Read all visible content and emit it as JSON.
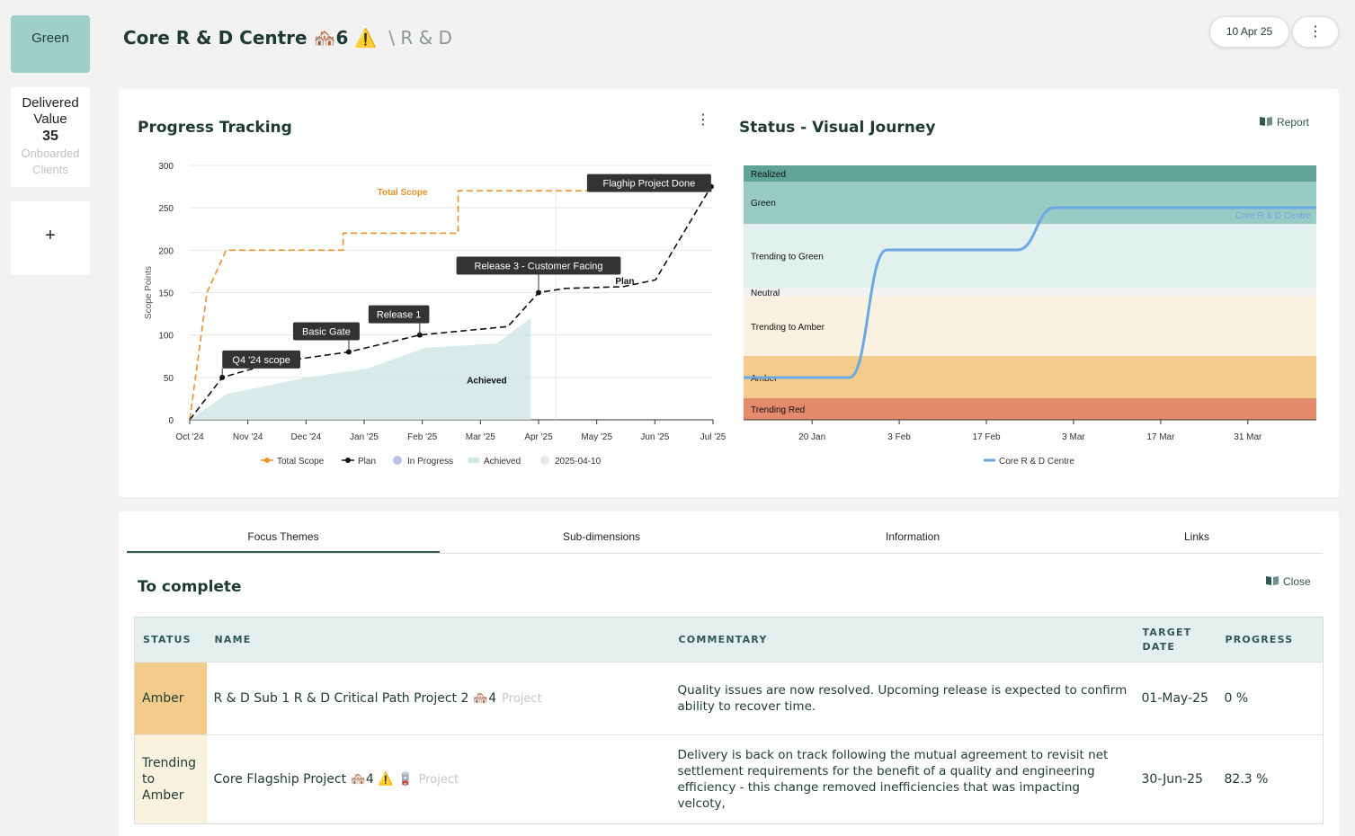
{
  "sidebar": {
    "status_label": "Green",
    "delivered_label": "Delivered Value",
    "delivered_value": "35",
    "onboarded_label": "Onboarded Clients",
    "add_label": "+"
  },
  "header": {
    "title": "Core R & D Centre",
    "title_badges": "🏘️6 ⚠️",
    "breadcrumb": "\\ R & D",
    "date": "10 Apr 25",
    "more_icon": "kebab-icon"
  },
  "progress_panel": {
    "title": "Progress Tracking",
    "more_icon": "kebab-icon"
  },
  "journey_panel": {
    "title": "Status - Visual Journey",
    "report_label": "Report",
    "report_icon": "book-icon"
  },
  "chart_data": [
    {
      "type": "line",
      "ylabel": "Scope Points",
      "ylim": [
        0,
        300
      ],
      "yticks": [
        0,
        50,
        100,
        150,
        200,
        250,
        300
      ],
      "xticks": [
        "Oct '24",
        "Nov '24",
        "Dec '24",
        "Jan '25",
        "Feb '25",
        "Mar '25",
        "Apr '25",
        "May '25",
        "Jun '25",
        "Jul '25"
      ],
      "grid": true,
      "legend_position": "bottom",
      "legend": [
        "Total Scope",
        "Plan",
        "In Progress",
        "Achieved",
        "2025-04-10"
      ],
      "today_marker": "2025-04-10",
      "series": [
        {
          "name": "Total Scope",
          "color": "#e8912c",
          "style": "dashed",
          "points": [
            [
              "2024-10-01",
              0
            ],
            [
              "2024-10-10",
              150
            ],
            [
              "2024-10-20",
              200
            ],
            [
              "2024-12-20",
              200
            ],
            [
              "2024-12-20",
              220
            ],
            [
              "2025-02-18",
              220
            ],
            [
              "2025-02-18",
              270
            ],
            [
              "2025-07-01",
              270
            ]
          ]
        },
        {
          "name": "Plan",
          "color": "#111111",
          "style": "dashed",
          "points": [
            [
              "2024-10-01",
              0
            ],
            [
              "2024-10-18",
              50
            ],
            [
              "2024-11-15",
              68
            ],
            [
              "2024-12-23",
              80
            ],
            [
              "2025-01-29",
              100
            ],
            [
              "2025-03-16",
              110
            ],
            [
              "2025-04-01",
              150
            ],
            [
              "2025-04-15",
              155
            ],
            [
              "2025-05-15",
              157
            ],
            [
              "2025-06-01",
              165
            ],
            [
              "2025-06-30",
              275
            ]
          ]
        },
        {
          "name": "Achieved",
          "color": "#cfe6e2",
          "style": "area",
          "points": [
            [
              "2024-10-01",
              0
            ],
            [
              "2024-10-20",
              30
            ],
            [
              "2024-12-01",
              50
            ],
            [
              "2025-01-01",
              60
            ],
            [
              "2025-02-01",
              85
            ],
            [
              "2025-03-10",
              90
            ],
            [
              "2025-03-28",
              120
            ]
          ]
        }
      ],
      "annotations": [
        {
          "label": "Q4 '24 scope",
          "date": "2024-10-18",
          "value": 50
        },
        {
          "label": "Basic Gate",
          "date": "2024-12-23",
          "value": 80
        },
        {
          "label": "Release 1",
          "date": "2025-01-29",
          "value": 100
        },
        {
          "label": "Release 3 - Customer Facing",
          "date": "2025-04-01",
          "value": 150
        },
        {
          "label": "Flaghip Project Done",
          "date": "2025-06-30",
          "value": 275
        }
      ],
      "series_labels": [
        {
          "label": "Total Scope",
          "date": "2025-01-20",
          "value": 265
        },
        {
          "label": "Plan",
          "date": "2025-05-16",
          "value": 160
        },
        {
          "label": "Achieved",
          "date": "2025-03-05",
          "value": 43
        }
      ]
    },
    {
      "type": "line",
      "xticks": [
        "20 Jan",
        "3 Feb",
        "17 Feb",
        "3 Mar",
        "17 Mar",
        "31 Mar"
      ],
      "bands": [
        {
          "label": "Realized",
          "color": "#5fa497"
        },
        {
          "label": "Green",
          "color": "#99cbc5"
        },
        {
          "label": "Trending to Green",
          "color": "#e2f0ee"
        },
        {
          "label": "Neutral",
          "color": "#f2f2f2"
        },
        {
          "label": "Trending to Amber",
          "color": "#faf1de"
        },
        {
          "label": "Amber",
          "color": "#f3cb8b"
        },
        {
          "label": "Trending Red",
          "color": "#e48b6c"
        }
      ],
      "legend_position": "bottom",
      "series": [
        {
          "name": "Core R & D Centre",
          "color": "#6aa8e6",
          "points": [
            [
              "2025-01-09",
              "Amber"
            ],
            [
              "2025-01-26",
              "Amber"
            ],
            [
              "2025-02-01",
              "Trending to Green"
            ],
            [
              "2025-02-22",
              "Trending to Green"
            ],
            [
              "2025-02-28",
              "Green"
            ],
            [
              "2025-04-11",
              "Green"
            ]
          ]
        }
      ]
    }
  ],
  "tabs": [
    {
      "label": "Focus Themes",
      "active": true
    },
    {
      "label": "Sub-dimensions",
      "active": false
    },
    {
      "label": "Information",
      "active": false
    },
    {
      "label": "Links",
      "active": false
    }
  ],
  "section": {
    "title": "To complete",
    "close_label": "Close",
    "close_icon": "book-icon"
  },
  "table": {
    "headers": [
      "STATUS",
      "NAME",
      "COMMENTARY",
      "TARGET DATE",
      "PROGRESS"
    ],
    "rows": [
      {
        "status": "Amber",
        "name": "R & D Sub 1 R & D Critical Path Project 2 🏘️4",
        "type": "Project",
        "commentary": "Quality issues are now resolved. Upcoming release is expected to confirm ability to recover time.",
        "target_date": "01-May-25",
        "progress": "0 %"
      },
      {
        "status": "Trending to Amber",
        "name": "Core Flagship Project 🏘️4 ⚠️ 🪫",
        "type": "Project",
        "commentary": "Delivery is back on track following the mutual agreement to revisit net settlement requirements for the benefit of a quality and engineering efficiency - this change removed inefficiencies that was impacting velcoty,",
        "target_date": "30-Jun-25",
        "progress": "82.3 %"
      }
    ]
  }
}
